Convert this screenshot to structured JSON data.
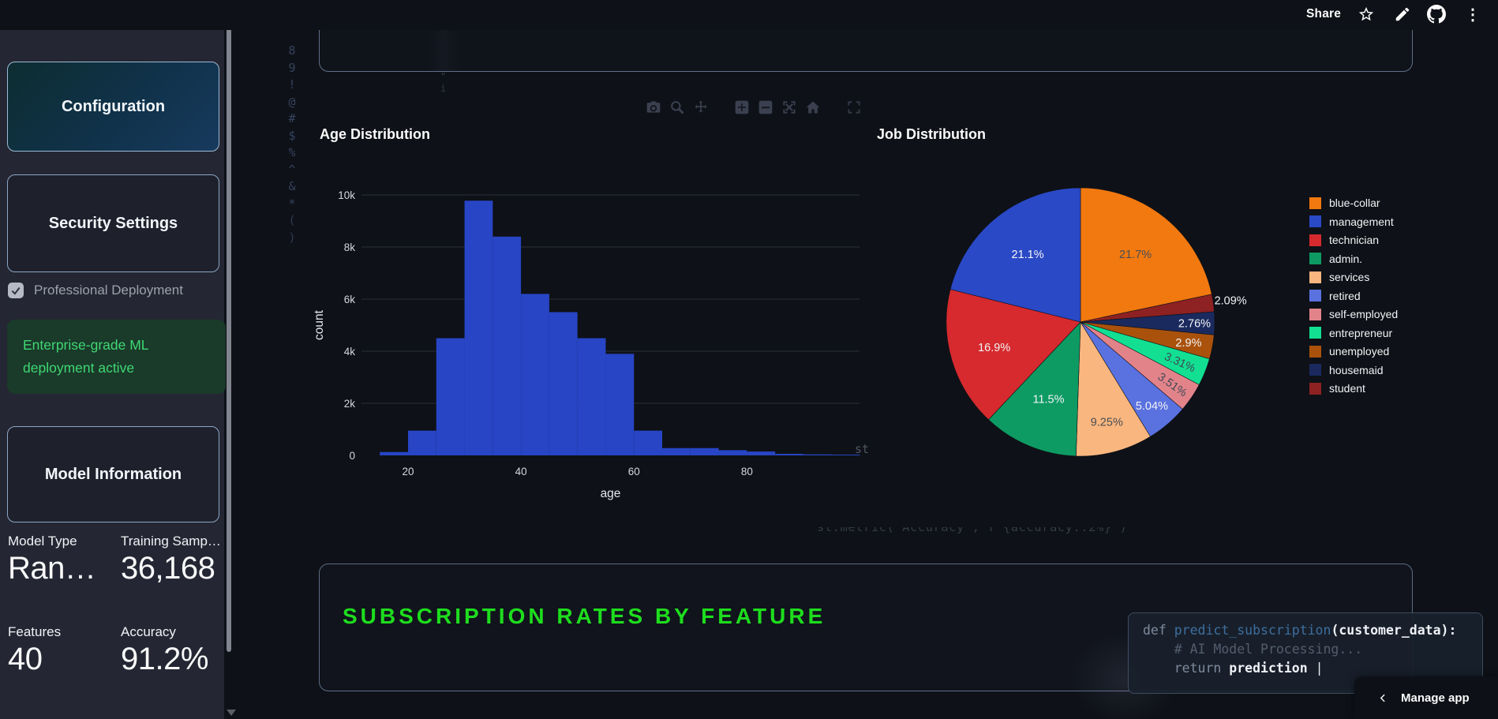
{
  "header": {
    "share_label": "Share",
    "icons": [
      "star-icon",
      "pencil-icon",
      "github-icon",
      "overflow-menu-icon"
    ]
  },
  "sidebar": {
    "collapse_icon": "«",
    "config_button": "Configuration",
    "security_button": "Security Settings",
    "checkbox_label": "Professional Deployment",
    "checkbox_checked": true,
    "success_message": "Enterprise-grade ML deployment active",
    "model_info_button": "Model Information",
    "metrics": [
      {
        "label": "Model Type",
        "value": "Ran…"
      },
      {
        "label": "Training Samp…",
        "value": "36,168"
      },
      {
        "label": "Features",
        "value": "40"
      },
      {
        "label": "Accuracy",
        "value": "91.2%"
      }
    ]
  },
  "decor": {
    "matrix_column_chars": [
      "8",
      "9",
      "!",
      "@",
      "#",
      "$",
      "%",
      "^",
      "&",
      "*",
      "(",
      ")"
    ],
    "ghost_fragment_chars": [
      "\"",
      "i"
    ],
    "ghost_tail": "st",
    "ghost_code_line": "st.metric(\"Accuracy\", f\"{accuracy:.2%}\")"
  },
  "section": {
    "title": "SUBSCRIPTION RATES BY FEATURE",
    "title_color": "#1edd1e"
  },
  "code_block": {
    "line1_kw": "def ",
    "line1_fn": "predict_subscription",
    "line1_rest": "(customer_data):",
    "line2": "    # AI Model Processing...",
    "line3_indent": "    ",
    "line3_kw": "return ",
    "line3_val": "prediction",
    "cursor": " |"
  },
  "manage_app": {
    "label": "Manage app"
  },
  "chart_data": [
    {
      "type": "bar",
      "subtype": "histogram",
      "title": "Age Distribution",
      "xlabel": "age",
      "ylabel": "count",
      "bar_color": "#2745c5",
      "grid_color": "#2a2e39",
      "tick_color": "#d5d7dc",
      "xlim": [
        12,
        100
      ],
      "ylim": [
        0,
        11000
      ],
      "x_ticks": [
        20,
        40,
        60,
        80
      ],
      "y_ticks": [
        {
          "v": 0,
          "label": "0"
        },
        {
          "v": 2000,
          "label": "2k"
        },
        {
          "v": 4000,
          "label": "4k"
        },
        {
          "v": 6000,
          "label": "6k"
        },
        {
          "v": 8000,
          "label": "8k"
        },
        {
          "v": 10000,
          "label": "10k"
        }
      ],
      "bin_width": 5,
      "bins": [
        {
          "x0": 15,
          "count": 130
        },
        {
          "x0": 20,
          "count": 950
        },
        {
          "x0": 25,
          "count": 4500
        },
        {
          "x0": 30,
          "count": 9780
        },
        {
          "x0": 35,
          "count": 8400
        },
        {
          "x0": 40,
          "count": 6200
        },
        {
          "x0": 45,
          "count": 5500
        },
        {
          "x0": 50,
          "count": 4500
        },
        {
          "x0": 55,
          "count": 3900
        },
        {
          "x0": 60,
          "count": 950
        },
        {
          "x0": 65,
          "count": 280
        },
        {
          "x0": 70,
          "count": 280
        },
        {
          "x0": 75,
          "count": 200
        },
        {
          "x0": 80,
          "count": 150
        },
        {
          "x0": 85,
          "count": 60
        },
        {
          "x0": 90,
          "count": 40
        },
        {
          "x0": 95,
          "count": 30
        }
      ]
    },
    {
      "type": "pie",
      "title": "Job Distribution",
      "direction": "clockwise",
      "start_angle_deg": 0,
      "legend_position": "right",
      "slices": [
        {
          "label": "blue-collar",
          "pct": 21.7,
          "display": "21.7%",
          "color": "#f2790f",
          "lstyle": "inside-dark",
          "lr": 0.65
        },
        {
          "label": "student",
          "pct": 2.09,
          "display": "2.09%",
          "color": "#8e2122",
          "lstyle": "outside",
          "lr": 1.13
        },
        {
          "label": "housemaid",
          "pct": 2.76,
          "display": "2.76%",
          "color": "#1a2a5e",
          "lstyle": "inside-white",
          "lr": 0.85
        },
        {
          "label": "unemployed",
          "pct": 2.9,
          "display": "2.9%",
          "color": "#aa520c",
          "lstyle": "inside-white",
          "lr": 0.82
        },
        {
          "label": "entrepreneur",
          "pct": 3.31,
          "display": "3.31%",
          "color": "#12df92",
          "lstyle": "rot-dark",
          "lr": 0.8,
          "rot": 24
        },
        {
          "label": "self-employed",
          "pct": 3.51,
          "display": "3.51%",
          "color": "#e2838a",
          "lstyle": "rot-dark",
          "lr": 0.83,
          "rot": 35
        },
        {
          "label": "retired",
          "pct": 5.04,
          "display": "5.04%",
          "color": "#5a72e0",
          "lstyle": "inside-white",
          "lr": 0.82
        },
        {
          "label": "services",
          "pct": 9.25,
          "display": "9.25%",
          "color": "#f9b67e",
          "lstyle": "inside-dark",
          "lr": 0.77
        },
        {
          "label": "admin.",
          "pct": 11.5,
          "display": "11.5%",
          "color": "#0d9b63",
          "lstyle": "inside-white",
          "lr": 0.62
        },
        {
          "label": "technician",
          "pct": 16.9,
          "display": "16.9%",
          "color": "#d62a2e",
          "lstyle": "inside-white",
          "lr": 0.67
        },
        {
          "label": "management",
          "pct": 21.1,
          "display": "21.1%",
          "color": "#2a49c6",
          "lstyle": "inside-white",
          "lr": 0.64
        }
      ],
      "legend": [
        "blue-collar",
        "management",
        "technician",
        "admin.",
        "services",
        "retired",
        "self-employed",
        "entrepreneur",
        "unemployed",
        "housemaid",
        "student"
      ]
    }
  ]
}
